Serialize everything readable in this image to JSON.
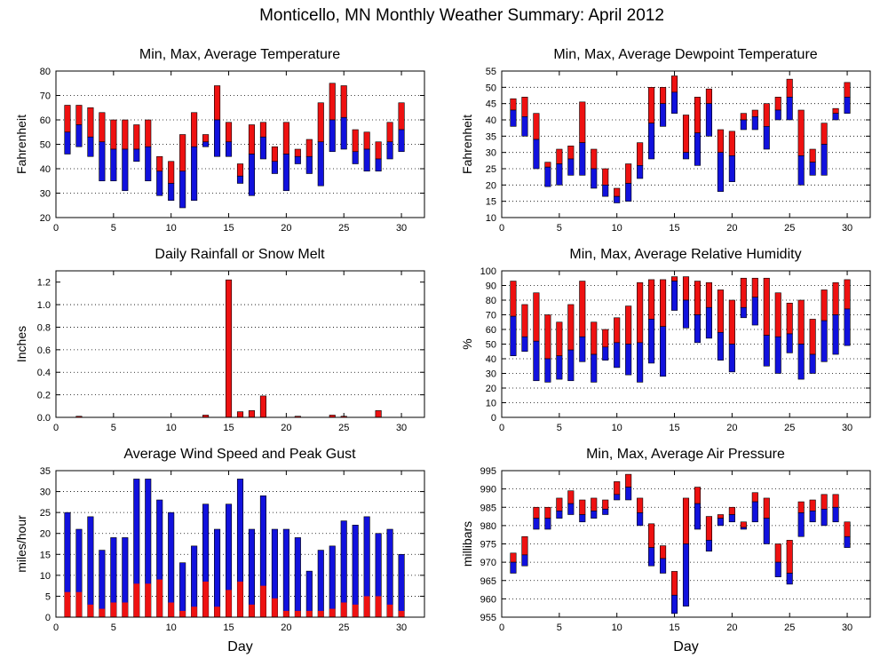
{
  "page_title": "Monticello, MN Monthly Weather Summary: April 2012",
  "colors": {
    "upper": "#ee1111",
    "lower": "#1111dd",
    "frame": "#000000",
    "grid": "#000000"
  },
  "chart_data": [
    {
      "id": "temperature",
      "type": "bar",
      "subtype": "range-with-average",
      "title": "Min, Max, Average Temperature",
      "xlabel": "",
      "ylabel": "Fahrenheit",
      "xlim": [
        0,
        32
      ],
      "ylim": [
        20,
        80
      ],
      "xticks": [
        0,
        5,
        10,
        15,
        20,
        25,
        30
      ],
      "yticks": [
        20,
        30,
        40,
        50,
        60,
        70,
        80
      ],
      "grid": true,
      "x": [
        1,
        2,
        3,
        4,
        5,
        6,
        7,
        8,
        9,
        10,
        11,
        12,
        13,
        14,
        15,
        16,
        17,
        18,
        19,
        20,
        21,
        22,
        23,
        24,
        25,
        26,
        27,
        28,
        29,
        30
      ],
      "min": [
        46,
        49,
        45,
        35,
        35,
        31,
        43,
        35,
        29,
        27,
        24,
        27,
        49,
        45,
        45,
        34,
        29,
        44,
        38,
        31,
        42,
        38,
        33,
        47,
        48,
        42,
        39,
        39,
        44,
        47
      ],
      "max": [
        66,
        66,
        65,
        63,
        60,
        60,
        58,
        60,
        45,
        43,
        54,
        63,
        54,
        74,
        59,
        42,
        58,
        59,
        49,
        59,
        48,
        52,
        67,
        75,
        74,
        56,
        55,
        51,
        59,
        67
      ],
      "avg": [
        55,
        58,
        53,
        51,
        48,
        48,
        48,
        49,
        39,
        34,
        39,
        49,
        51,
        60,
        51,
        37,
        46,
        53,
        43,
        46,
        45,
        45,
        51,
        60,
        61,
        47,
        48,
        44,
        51,
        56
      ]
    },
    {
      "id": "dewpoint",
      "type": "bar",
      "subtype": "range-with-average",
      "title": "Min, Max, Average Dewpoint Temperature",
      "xlabel": "",
      "ylabel": "Fahrenheit",
      "xlim": [
        0,
        32
      ],
      "ylim": [
        10,
        55
      ],
      "xticks": [
        0,
        5,
        10,
        15,
        20,
        25,
        30
      ],
      "yticks": [
        10,
        15,
        20,
        25,
        30,
        35,
        40,
        45,
        50,
        55
      ],
      "grid": true,
      "x": [
        1,
        2,
        3,
        4,
        5,
        6,
        7,
        8,
        9,
        10,
        11,
        12,
        13,
        14,
        15,
        16,
        17,
        18,
        19,
        20,
        21,
        22,
        23,
        24,
        25,
        26,
        27,
        28,
        29,
        30
      ],
      "min": [
        38,
        35,
        25,
        19.5,
        20,
        23,
        23,
        19,
        16.5,
        14.5,
        15,
        22,
        28,
        38,
        42,
        28,
        26,
        35,
        18,
        21,
        37,
        37,
        31,
        40,
        40,
        20,
        23,
        23,
        40,
        42
      ],
      "max": [
        46.5,
        47,
        42,
        27,
        31,
        32,
        45.5,
        31,
        25,
        19,
        26.5,
        33,
        50,
        50,
        53.5,
        41.5,
        47,
        49.5,
        37,
        36.5,
        42,
        43,
        45,
        47,
        52.5,
        43,
        31,
        39,
        43.5,
        51.5
      ],
      "avg": [
        43,
        41,
        34,
        25.5,
        26.5,
        28,
        33,
        25,
        20,
        16.5,
        20.5,
        26,
        39,
        45,
        48.5,
        30,
        36,
        45,
        30,
        29,
        40,
        41,
        38,
        43,
        47,
        29,
        27,
        32.5,
        42,
        47
      ]
    },
    {
      "id": "rainfall",
      "type": "bar",
      "title": "Daily Rainfall or Snow Melt",
      "xlabel": "",
      "ylabel": "Inches",
      "xlim": [
        0,
        32
      ],
      "ylim": [
        0,
        1.3
      ],
      "xticks": [
        0,
        5,
        10,
        15,
        20,
        25,
        30
      ],
      "yticks": [
        0.0,
        0.2,
        0.4,
        0.6,
        0.8,
        1.0,
        1.2
      ],
      "ytick_labels": [
        "0.0",
        "0.2",
        "0.4",
        "0.6",
        "0.8",
        "1.0",
        "1.2"
      ],
      "grid": true,
      "x": [
        1,
        2,
        3,
        4,
        5,
        6,
        7,
        8,
        9,
        10,
        11,
        12,
        13,
        14,
        15,
        16,
        17,
        18,
        19,
        20,
        21,
        22,
        23,
        24,
        25,
        26,
        27,
        28,
        29,
        30
      ],
      "values": [
        0,
        0.01,
        0,
        0,
        0,
        0,
        0,
        0,
        0,
        0,
        0,
        0,
        0.02,
        0,
        1.22,
        0.05,
        0.06,
        0.19,
        0,
        0,
        0.01,
        0,
        0,
        0.02,
        0.01,
        0,
        0,
        0.06,
        0,
        0
      ]
    },
    {
      "id": "humidity",
      "type": "bar",
      "subtype": "range-with-average",
      "title": "Min, Max, Average Relative Humidity",
      "xlabel": "",
      "ylabel": "%",
      "xlim": [
        0,
        32
      ],
      "ylim": [
        0,
        100
      ],
      "xticks": [
        0,
        5,
        10,
        15,
        20,
        25,
        30
      ],
      "yticks": [
        0,
        10,
        20,
        30,
        40,
        50,
        60,
        70,
        80,
        90,
        100
      ],
      "grid": true,
      "x": [
        1,
        2,
        3,
        4,
        5,
        6,
        7,
        8,
        9,
        10,
        11,
        12,
        13,
        14,
        15,
        16,
        17,
        18,
        19,
        20,
        21,
        22,
        23,
        24,
        25,
        26,
        27,
        28,
        29,
        30
      ],
      "min": [
        42,
        45,
        25,
        24,
        26,
        25,
        38,
        24,
        39,
        34,
        29,
        24,
        37,
        28,
        73,
        61,
        51,
        54,
        39,
        31,
        68,
        63,
        35,
        30,
        44,
        26,
        30,
        38,
        43,
        49
      ],
      "max": [
        93,
        77,
        85,
        70,
        65,
        77,
        93,
        65,
        60,
        68,
        76,
        92,
        94,
        94,
        96,
        96,
        93,
        92,
        87,
        80,
        95,
        95,
        95,
        85,
        78,
        80,
        67,
        87,
        92,
        94
      ],
      "avg": [
        69,
        55,
        52,
        40,
        42,
        46,
        55,
        43,
        48,
        51,
        50,
        51,
        67,
        62,
        93,
        80,
        70,
        75,
        58,
        50,
        75,
        82,
        56,
        55,
        57,
        50,
        43,
        66,
        70,
        74
      ]
    },
    {
      "id": "wind",
      "type": "bar",
      "subtype": "overlay",
      "title": "Average Wind Speed and Peak Gust",
      "xlabel": "Day",
      "ylabel": "miles/hour",
      "xlim": [
        0,
        32
      ],
      "ylim": [
        0,
        35
      ],
      "xticks": [
        0,
        5,
        10,
        15,
        20,
        25,
        30
      ],
      "yticks": [
        0,
        5,
        10,
        15,
        20,
        25,
        30,
        35
      ],
      "grid": true,
      "x": [
        1,
        2,
        3,
        4,
        5,
        6,
        7,
        8,
        9,
        10,
        11,
        12,
        13,
        14,
        15,
        16,
        17,
        18,
        19,
        20,
        21,
        22,
        23,
        24,
        25,
        26,
        27,
        28,
        29,
        30
      ],
      "peak_gust": [
        25,
        21,
        24,
        16,
        19,
        19,
        33,
        33,
        28,
        25,
        13,
        17,
        27,
        21,
        27,
        33,
        21,
        29,
        21,
        21,
        19,
        11,
        16,
        17,
        23,
        22,
        24,
        20,
        21,
        15
      ],
      "avg_speed": [
        6,
        6,
        3,
        2,
        3.5,
        3.5,
        8,
        8,
        9,
        3.5,
        1.5,
        2.5,
        8.5,
        2.5,
        6.5,
        8.5,
        3,
        7.5,
        4.5,
        1.5,
        1.5,
        1.5,
        1.5,
        2,
        3.5,
        3,
        5,
        5,
        3,
        1.5
      ]
    },
    {
      "id": "pressure",
      "type": "bar",
      "subtype": "range-with-average",
      "title": "Min, Max, Average Air Pressure",
      "xlabel": "Day",
      "ylabel": "millibars",
      "xlim": [
        0,
        32
      ],
      "ylim": [
        955,
        995
      ],
      "xticks": [
        0,
        5,
        10,
        15,
        20,
        25,
        30
      ],
      "yticks": [
        955,
        960,
        965,
        970,
        975,
        980,
        985,
        990,
        995
      ],
      "grid": true,
      "x": [
        1,
        2,
        3,
        4,
        5,
        6,
        7,
        8,
        9,
        10,
        11,
        12,
        13,
        14,
        15,
        16,
        17,
        18,
        19,
        20,
        21,
        22,
        23,
        24,
        25,
        26,
        27,
        28,
        29,
        30
      ],
      "min": [
        967,
        969,
        979,
        979,
        982,
        983,
        981,
        982,
        983,
        987,
        987,
        980,
        969,
        967,
        956,
        958,
        979,
        973,
        980,
        981,
        979,
        981,
        975,
        966,
        964,
        977,
        981,
        980,
        981,
        974
      ],
      "max": [
        972.5,
        977,
        985,
        985,
        987.5,
        989.5,
        987,
        987.5,
        987,
        992,
        994,
        987.5,
        980.5,
        974.5,
        967.5,
        987.5,
        990.5,
        982.5,
        983,
        985,
        981,
        989,
        987.5,
        975,
        976,
        986.5,
        987,
        988.5,
        988.5,
        981
      ],
      "avg": [
        970,
        972,
        982,
        982,
        984,
        986,
        983,
        984,
        984.5,
        988.5,
        990.5,
        983.5,
        974,
        971,
        961,
        975,
        986,
        976,
        982,
        983,
        979.5,
        986.5,
        982,
        970,
        967,
        983.5,
        984,
        984.5,
        985,
        977
      ]
    }
  ]
}
